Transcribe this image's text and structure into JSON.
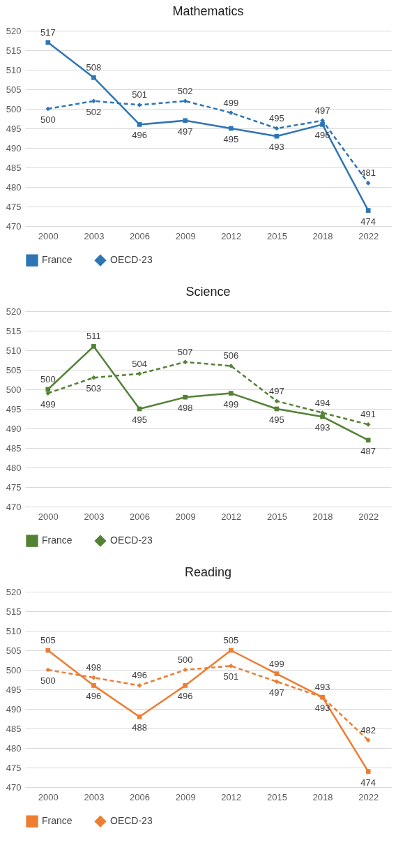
{
  "chart_data": [
    {
      "type": "line",
      "title": "Mathematics",
      "categories": [
        "2000",
        "2003",
        "2006",
        "2009",
        "2012",
        "2015",
        "2018",
        "2022"
      ],
      "ylim": [
        470,
        520
      ],
      "yticks": [
        470,
        475,
        480,
        485,
        490,
        495,
        500,
        505,
        510,
        515,
        520
      ],
      "grid": "y",
      "legend": "bottom",
      "data_labels": true,
      "series": [
        {
          "name": "France",
          "color": "#2e75b6",
          "marker": "square",
          "line_style": "solid",
          "values": [
            517,
            508,
            496,
            497,
            495,
            493,
            496,
            474
          ]
        },
        {
          "name": "OECD-23",
          "color": "#2e75b6",
          "marker": "diamond",
          "line_style": "dashed",
          "values": [
            500,
            502,
            501,
            502,
            499,
            495,
            497,
            481
          ]
        }
      ]
    },
    {
      "type": "line",
      "title": "Science",
      "categories": [
        "2000",
        "2003",
        "2006",
        "2009",
        "2012",
        "2015",
        "2018",
        "2022"
      ],
      "ylim": [
        470,
        520
      ],
      "yticks": [
        470,
        475,
        480,
        485,
        490,
        495,
        500,
        505,
        510,
        515,
        520
      ],
      "grid": "y",
      "legend": "bottom",
      "data_labels": true,
      "series": [
        {
          "name": "France",
          "color": "#548235",
          "marker": "square",
          "line_style": "solid",
          "values": [
            500,
            511,
            495,
            498,
            499,
            495,
            493,
            487
          ]
        },
        {
          "name": "OECD-23",
          "color": "#548235",
          "marker": "diamond",
          "line_style": "dashed",
          "values": [
            499,
            503,
            504,
            507,
            506,
            497,
            494,
            491
          ]
        }
      ]
    },
    {
      "type": "line",
      "title": "Reading",
      "categories": [
        "2000",
        "2003",
        "2006",
        "2009",
        "2012",
        "2015",
        "2018",
        "2022"
      ],
      "ylim": [
        470,
        520
      ],
      "yticks": [
        470,
        475,
        480,
        485,
        490,
        495,
        500,
        505,
        510,
        515,
        520
      ],
      "grid": "y",
      "legend": "bottom",
      "data_labels": true,
      "series": [
        {
          "name": "France",
          "color": "#ed7d31",
          "marker": "square",
          "line_style": "solid",
          "values": [
            505,
            496,
            488,
            496,
            505,
            499,
            493,
            474
          ]
        },
        {
          "name": "OECD-23",
          "color": "#ed7d31",
          "marker": "diamond",
          "line_style": "dashed",
          "values": [
            500,
            498,
            496,
            500,
            501,
            497,
            493,
            482
          ]
        }
      ]
    }
  ]
}
